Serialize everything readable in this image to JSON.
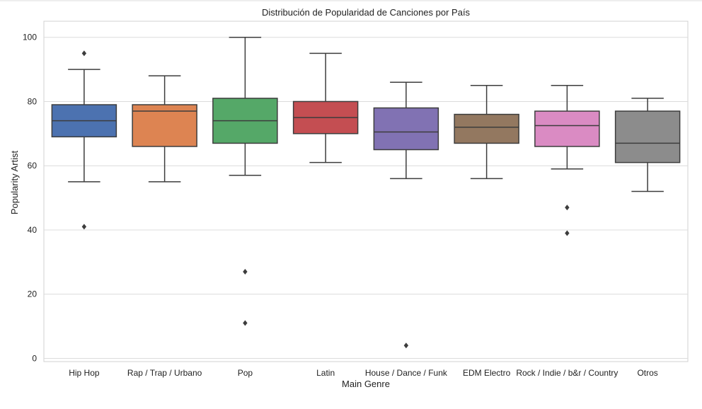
{
  "chart_data": {
    "type": "box",
    "title": "Distribución de Popularidad de Canciones por País",
    "xlabel": "Main Genre",
    "ylabel": "Popularity Artist",
    "ylim": [
      -1,
      105
    ],
    "yticks": [
      0,
      20,
      40,
      60,
      80,
      100
    ],
    "grid": true,
    "legend": "none",
    "categories": [
      "Hip Hop",
      "Rap / Trap / Urbano",
      "Pop",
      "Latin",
      "House / Dance / Funk",
      "EDM Electro",
      "Rock / Indie / b&r / Country",
      "Otros"
    ],
    "boxes": [
      {
        "category": "Hip Hop",
        "whisker_low": 55,
        "q1": 69,
        "median": 74,
        "q3": 79,
        "whisker_high": 90,
        "outliers": [
          95,
          41
        ],
        "color": "#4c72b0"
      },
      {
        "category": "Rap / Trap / Urbano",
        "whisker_low": 55,
        "q1": 66,
        "median": 77,
        "q3": 79,
        "whisker_high": 88,
        "outliers": [],
        "color": "#dd8452"
      },
      {
        "category": "Pop",
        "whisker_low": 57,
        "q1": 67,
        "median": 74,
        "q3": 81,
        "whisker_high": 100,
        "outliers": [
          27,
          11
        ],
        "color": "#55a868"
      },
      {
        "category": "Latin",
        "whisker_low": 61,
        "q1": 70,
        "median": 75,
        "q3": 80,
        "whisker_high": 95,
        "outliers": [],
        "color": "#c44e52"
      },
      {
        "category": "House / Dance / Funk",
        "whisker_low": 56,
        "q1": 65,
        "median": 70.5,
        "q3": 78,
        "whisker_high": 86,
        "outliers": [
          4
        ],
        "color": "#8172b3"
      },
      {
        "category": "EDM Electro",
        "whisker_low": 56,
        "q1": 67,
        "median": 72,
        "q3": 76,
        "whisker_high": 85,
        "outliers": [],
        "color": "#937860"
      },
      {
        "category": "Rock / Indie / b&r / Country",
        "whisker_low": 59,
        "q1": 66,
        "median": 72.5,
        "q3": 77,
        "whisker_high": 85,
        "outliers": [
          47,
          39
        ],
        "color": "#da8bc3"
      },
      {
        "category": "Otros",
        "whisker_low": 52,
        "q1": 61,
        "median": 67,
        "q3": 77,
        "whisker_high": 81,
        "outliers": [],
        "color": "#8c8c8c"
      }
    ]
  }
}
